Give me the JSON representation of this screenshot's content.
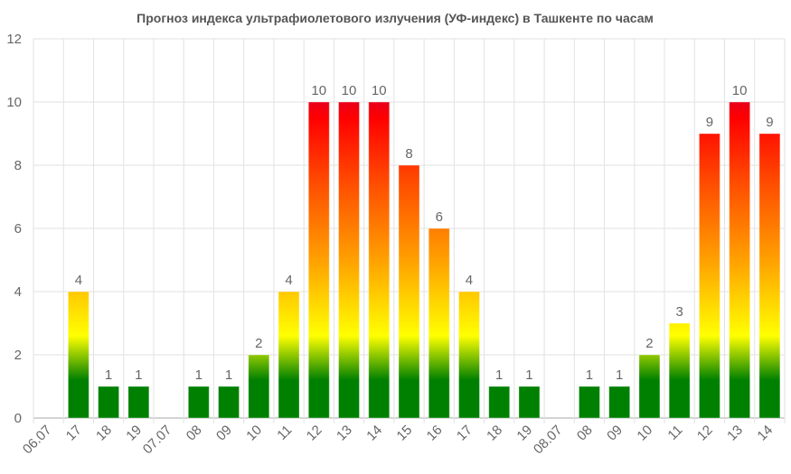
{
  "chart_data": {
    "type": "bar",
    "title": "Прогноз индекса ультрафиолетового излучения (УФ-индекс) в Ташкенте по часам",
    "xlabel": "",
    "ylabel": "",
    "ylim": [
      0,
      12
    ],
    "yticks": [
      0,
      2,
      4,
      6,
      8,
      10,
      12
    ],
    "grid": true,
    "legend": "none",
    "categories": [
      "06.07",
      "17",
      "18",
      "19",
      "07.07",
      "08",
      "09",
      "10",
      "11",
      "12",
      "13",
      "14",
      "15",
      "16",
      "17",
      "18",
      "19",
      "08.07",
      "08",
      "09",
      "10",
      "11",
      "12",
      "13",
      "14"
    ],
    "values": [
      null,
      4,
      1,
      1,
      null,
      1,
      1,
      2,
      4,
      10,
      10,
      10,
      8,
      6,
      4,
      1,
      1,
      null,
      1,
      1,
      2,
      3,
      9,
      10,
      9
    ],
    "colors": {
      "low": "#008000",
      "moderate": "#ffff00",
      "high": "#ffa000",
      "very_high": "#ff0000"
    }
  }
}
